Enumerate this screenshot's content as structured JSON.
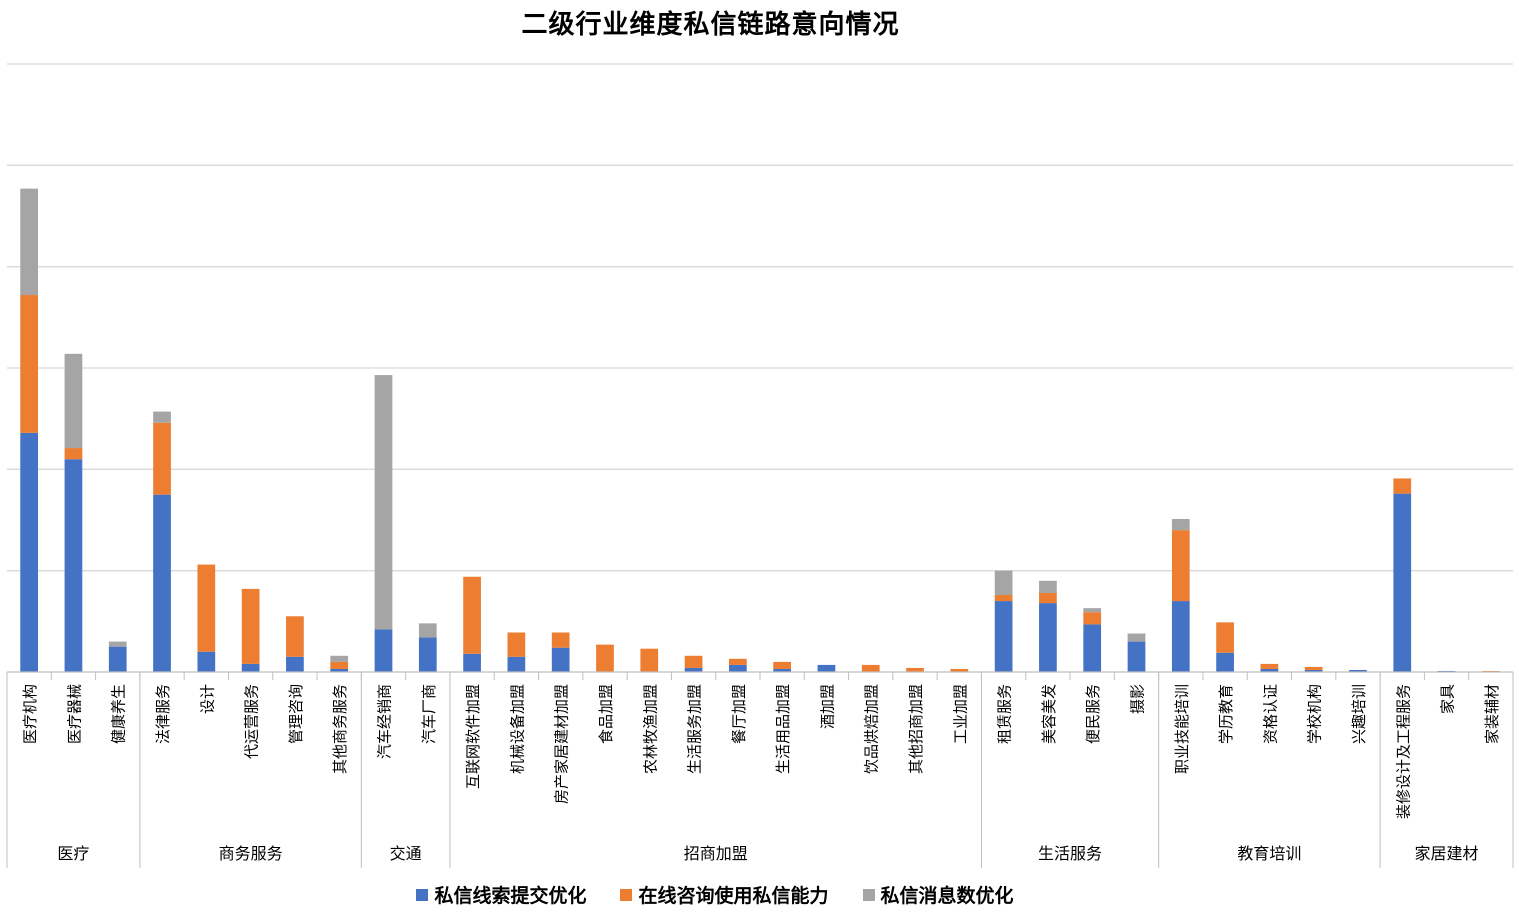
{
  "chart_data": {
    "type": "bar",
    "stacked": true,
    "title": "二级行业维度私信链路意向情况",
    "xlabel": "",
    "ylabel": "",
    "ylim": [
      0,
      60
    ],
    "grid": true,
    "legend_position": "bottom",
    "groups": [
      {
        "name": "医疗",
        "categories": [
          "医疗机构",
          "医疗器械",
          "健康养生"
        ]
      },
      {
        "name": "商务服务",
        "categories": [
          "法律服务",
          "设计",
          "代运营服务",
          "管理咨询",
          "其他商务服务"
        ]
      },
      {
        "name": "交通",
        "categories": [
          "汽车经销商",
          "汽车厂商"
        ]
      },
      {
        "name": "招商加盟",
        "categories": [
          "互联网软件加盟",
          "机械设备加盟",
          "房产家居建材加盟",
          "食品加盟",
          "农林牧渔加盟",
          "生活服务加盟",
          "餐厅加盟",
          "生活用品加盟",
          "酒加盟",
          "饮品烘焙加盟",
          "其他招商加盟",
          "工业加盟"
        ]
      },
      {
        "name": "生活服务",
        "categories": [
          "租赁服务",
          "美容美发",
          "便民服务",
          "摄影"
        ]
      },
      {
        "name": "教育培训",
        "categories": [
          "职业技能培训",
          "学历教育",
          "资格认证",
          "学校机构",
          "兴趣培训"
        ]
      },
      {
        "name": "家居建材",
        "categories": [
          "装修设计及工程服务",
          "家具",
          "家装辅材"
        ]
      }
    ],
    "series": [
      {
        "name": "私信线索提交优化",
        "color": "#4472C4",
        "values": [
          23.6,
          21.0,
          2.5,
          17.5,
          2.0,
          0.8,
          1.5,
          0.3,
          4.2,
          3.4,
          1.8,
          1.5,
          2.4,
          0.0,
          0.0,
          0.4,
          0.7,
          0.3,
          0.7,
          0.0,
          0.0,
          0.0,
          7.0,
          6.8,
          4.7,
          3.0,
          7.0,
          1.9,
          0.3,
          0.2,
          0.2,
          17.6,
          0.1,
          0.0
        ]
      },
      {
        "name": "在线咨询使用私信能力",
        "color": "#ED7D31",
        "values": [
          13.6,
          1.1,
          0.0,
          7.1,
          8.6,
          7.4,
          4.0,
          0.7,
          0.0,
          0.0,
          7.6,
          2.4,
          1.5,
          2.7,
          2.3,
          1.2,
          0.6,
          0.7,
          0.0,
          0.7,
          0.4,
          0.3,
          0.6,
          1.0,
          1.2,
          0.0,
          7.0,
          3.0,
          0.5,
          0.3,
          0.0,
          1.5,
          0.0,
          0.1
        ]
      },
      {
        "name": "私信消息数优化",
        "color": "#A5A5A5",
        "values": [
          10.5,
          9.3,
          0.5,
          1.1,
          0.0,
          0.0,
          0.0,
          0.6,
          25.1,
          1.4,
          0.0,
          0.0,
          0.0,
          0.0,
          0.0,
          0.0,
          0.0,
          0.0,
          0.0,
          0.0,
          0.0,
          0.0,
          2.4,
          1.2,
          0.4,
          0.8,
          1.1,
          0.0,
          0.0,
          0.0,
          0.0,
          0.0,
          0.0,
          0.0
        ]
      }
    ]
  }
}
